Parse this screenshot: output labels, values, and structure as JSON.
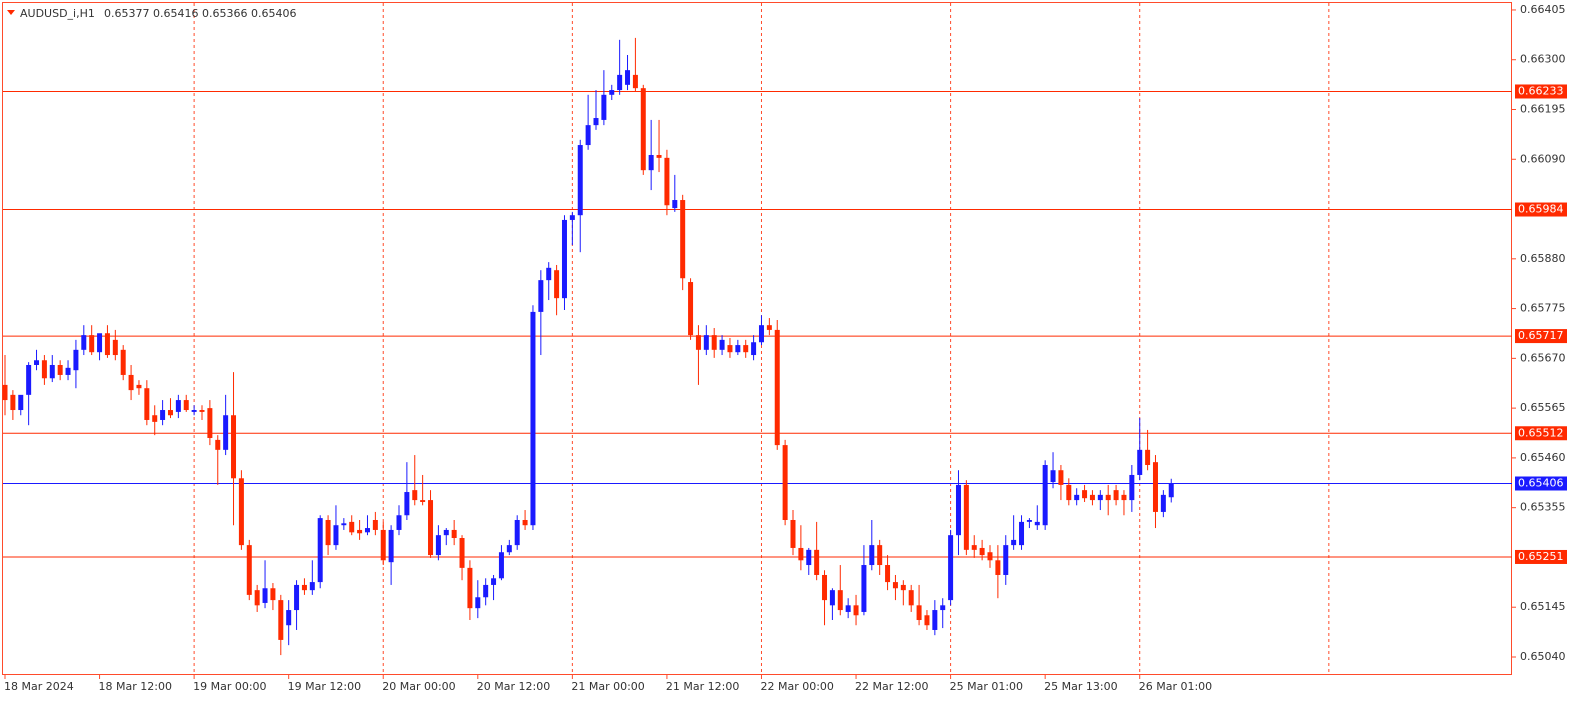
{
  "chart_data": {
    "type": "candlestick",
    "symbol": "AUDUSD_i,H1",
    "ylim": [
      0.65002,
      0.66426
    ],
    "yticks": [
      0.66405,
      {
        "value": 0.663,
        "label": "0.66300"
      },
      0.66195,
      {
        "value": 0.6609,
        "label": "0.66090"
      },
      {
        "value": 0.6588,
        "label": "0.65880"
      },
      0.65775,
      {
        "value": 0.6567,
        "label": "0.65670"
      },
      0.65565,
      {
        "value": 0.6546,
        "label": "0.65460"
      },
      0.65355,
      0.65145,
      {
        "value": 0.6504,
        "label": "0.65040"
      }
    ],
    "bull_color": "#1a1aff",
    "bear_color": "#ff2a00",
    "grid": true,
    "levels": [
      {
        "value": 0.66233,
        "color": "#ff2a00"
      },
      {
        "value": 0.65984,
        "color": "#ff2a00"
      },
      {
        "value": 0.65717,
        "color": "#ff2a00"
      },
      {
        "value": 0.65512,
        "color": "#ff2a00"
      },
      {
        "value": 0.65251,
        "color": "#ff2a00"
      },
      {
        "value": 0.65406,
        "color": "#1a1aff"
      }
    ],
    "x": [
      "18 Mar 2024",
      null,
      null,
      null,
      null,
      null,
      null,
      null,
      null,
      null,
      null,
      null,
      "18 Mar 12:00",
      null,
      null,
      null,
      null,
      null,
      null,
      null,
      null,
      null,
      null,
      null,
      "19 Mar 00:00",
      null,
      null,
      null,
      null,
      null,
      null,
      null,
      null,
      null,
      null,
      null,
      "19 Mar 12:00",
      null,
      null,
      null,
      null,
      null,
      null,
      null,
      null,
      null,
      null,
      null,
      "20 Mar 00:00",
      null,
      null,
      null,
      null,
      null,
      null,
      null,
      null,
      null,
      null,
      null,
      "20 Mar 12:00",
      null,
      null,
      null,
      null,
      null,
      null,
      null,
      null,
      null,
      null,
      null,
      "21 Mar 00:00",
      null,
      null,
      null,
      null,
      null,
      null,
      null,
      null,
      null,
      null,
      null,
      "21 Mar 12:00",
      null,
      null,
      null,
      null,
      null,
      null,
      null,
      null,
      null,
      null,
      null,
      "22 Mar 00:00",
      null,
      null,
      null,
      null,
      null,
      null,
      null,
      null,
      null,
      null,
      null,
      "22 Mar 12:00",
      null,
      null,
      null,
      null,
      null,
      null,
      null,
      null,
      null,
      null,
      null,
      "25 Mar 01:00",
      null,
      null,
      null,
      null,
      null,
      null,
      null,
      null,
      null,
      null,
      null,
      "25 Mar 13:00",
      null,
      null,
      null,
      null,
      null,
      null,
      null,
      null,
      null,
      null,
      null,
      "26 Mar 01:00",
      null,
      null,
      null,
      null
    ],
    "ohlc": [
      [
        0.65614,
        0.65677,
        0.6555,
        0.65582
      ],
      [
        0.65593,
        0.65603,
        0.6554,
        0.65561
      ],
      [
        0.65561,
        0.65582,
        0.6555,
        0.65593
      ],
      [
        0.65593,
        0.65662,
        0.65529,
        0.65656
      ],
      [
        0.65656,
        0.65688,
        0.65645,
        0.65666
      ],
      [
        0.65666,
        0.65677,
        0.65614,
        0.65628
      ],
      [
        0.65628,
        0.65677,
        0.6562,
        0.65656
      ],
      [
        0.65656,
        0.65666,
        0.65624,
        0.65635
      ],
      [
        0.65635,
        0.65666,
        0.65624,
        0.6565
      ],
      [
        0.65645,
        0.65709,
        0.65607,
        0.65688
      ],
      [
        0.65688,
        0.6574,
        0.65677,
        0.65719
      ],
      [
        0.65719,
        0.6574,
        0.65677,
        0.65683
      ],
      [
        0.65683,
        0.65719,
        0.65666,
        0.65723
      ],
      [
        0.65723,
        0.6574,
        0.65671,
        0.65677
      ],
      [
        0.65709,
        0.6573,
        0.65666,
        0.65677
      ],
      [
        0.65688,
        0.65698,
        0.65624,
        0.65635
      ],
      [
        0.65635,
        0.65656,
        0.65582,
        0.65603
      ],
      [
        0.65614,
        0.65624,
        0.65593,
        0.65607
      ],
      [
        0.65607,
        0.65624,
        0.65529,
        0.6554
      ],
      [
        0.6555,
        0.65571,
        0.65508,
        0.65536
      ],
      [
        0.6554,
        0.65582,
        0.65529,
        0.65561
      ],
      [
        0.65561,
        0.65586,
        0.65544,
        0.6555
      ],
      [
        0.65557,
        0.65593,
        0.65544,
        0.65582
      ],
      [
        0.65582,
        0.65593,
        0.65557,
        0.65561
      ],
      [
        0.65557,
        0.65571,
        0.6555,
        0.65561
      ],
      [
        0.65561,
        0.65571,
        0.6554,
        0.65557
      ],
      [
        0.65565,
        0.65582,
        0.65487,
        0.65502
      ],
      [
        0.65498,
        0.65508,
        0.65403,
        0.65477
      ],
      [
        0.65477,
        0.65593,
        0.65466,
        0.6555
      ],
      [
        0.6555,
        0.65641,
        0.65318,
        0.65417
      ],
      [
        0.65417,
        0.65434,
        0.65266,
        0.65276
      ],
      [
        0.65276,
        0.65287,
        0.6516,
        0.65171
      ],
      [
        0.65181,
        0.65192,
        0.65135,
        0.65149
      ],
      [
        0.65154,
        0.65244,
        0.65143,
        0.65185
      ],
      [
        0.65185,
        0.65196,
        0.65139,
        0.6516
      ],
      [
        0.6516,
        0.65171,
        0.65044,
        0.65076
      ],
      [
        0.65107,
        0.6516,
        0.65065,
        0.65139
      ],
      [
        0.65139,
        0.65202,
        0.65097,
        0.65192
      ],
      [
        0.65192,
        0.65206,
        0.65171,
        0.65181
      ],
      [
        0.65181,
        0.65244,
        0.65171,
        0.65198
      ],
      [
        0.65198,
        0.65339,
        0.65185,
        0.65333
      ],
      [
        0.65329,
        0.65339,
        0.65255,
        0.65276
      ],
      [
        0.65276,
        0.6536,
        0.65266,
        0.65318
      ],
      [
        0.65318,
        0.65333,
        0.65308,
        0.65322
      ],
      [
        0.65325,
        0.65339,
        0.65297,
        0.65303
      ],
      [
        0.65308,
        0.65329,
        0.65287,
        0.65301
      ],
      [
        0.65303,
        0.65339,
        0.65297,
        0.65312
      ],
      [
        0.65329,
        0.65346,
        0.65297,
        0.65308
      ],
      [
        0.65308,
        0.65325,
        0.65234,
        0.65244
      ],
      [
        0.6524,
        0.65318,
        0.65192,
        0.65308
      ],
      [
        0.65308,
        0.6536,
        0.65297,
        0.65339
      ],
      [
        0.65339,
        0.65451,
        0.65329,
        0.65388
      ],
      [
        0.65392,
        0.65466,
        0.6536,
        0.65371
      ],
      [
        0.65371,
        0.65424,
        0.6536,
        0.65367
      ],
      [
        0.65371,
        0.65392,
        0.65249,
        0.65255
      ],
      [
        0.65255,
        0.65318,
        0.65244,
        0.65297
      ],
      [
        0.65297,
        0.65312,
        0.65276,
        0.65308
      ],
      [
        0.65308,
        0.65329,
        0.65276,
        0.65291
      ],
      [
        0.65291,
        0.65297,
        0.65202,
        0.65228
      ],
      [
        0.65228,
        0.65244,
        0.65118,
        0.65143
      ],
      [
        0.65143,
        0.65202,
        0.65122,
        0.65166
      ],
      [
        0.65166,
        0.65206,
        0.65149,
        0.65192
      ],
      [
        0.65192,
        0.65213,
        0.6516,
        0.65206
      ],
      [
        0.65206,
        0.65276,
        0.65202,
        0.65261
      ],
      [
        0.65261,
        0.65287,
        0.65255,
        0.65276
      ],
      [
        0.65276,
        0.65339,
        0.65266,
        0.65329
      ],
      [
        0.65329,
        0.6535,
        0.65308,
        0.65318
      ],
      [
        0.65318,
        0.65782,
        0.65308,
        0.65768
      ],
      [
        0.65768,
        0.65856,
        0.65677,
        0.65835
      ],
      [
        0.65835,
        0.65873,
        0.65793,
        0.65861
      ],
      [
        0.65856,
        0.65867,
        0.65761,
        0.65797
      ],
      [
        0.65797,
        0.65972,
        0.65772,
        0.65962
      ],
      [
        0.65962,
        0.65979,
        0.65909,
        0.65972
      ],
      [
        0.65972,
        0.66131,
        0.65894,
        0.6612
      ],
      [
        0.6612,
        0.66226,
        0.6611,
        0.66162
      ],
      [
        0.66162,
        0.66236,
        0.66152,
        0.66177
      ],
      [
        0.66173,
        0.66278,
        0.66162,
        0.66226
      ],
      [
        0.66226,
        0.66247,
        0.66215,
        0.66236
      ],
      [
        0.66236,
        0.66342,
        0.66226,
        0.66268
      ],
      [
        0.66247,
        0.6631,
        0.66236,
        0.66278
      ],
      [
        0.66268,
        0.66346,
        0.66232,
        0.6624
      ],
      [
        0.6624,
        0.66247,
        0.66057,
        0.66067
      ],
      [
        0.66067,
        0.66173,
        0.66025,
        0.66099
      ],
      [
        0.66099,
        0.66173,
        0.66063,
        0.66093
      ],
      [
        0.66093,
        0.6611,
        0.65972,
        0.65993
      ],
      [
        0.65987,
        0.66057,
        0.65979,
        0.66004
      ],
      [
        0.66004,
        0.66015,
        0.65814,
        0.65839
      ],
      [
        0.65831,
        0.65839,
        0.65709,
        0.65719
      ],
      [
        0.65719,
        0.6574,
        0.65614,
        0.65688
      ],
      [
        0.65688,
        0.6574,
        0.65677,
        0.65719
      ],
      [
        0.65719,
        0.65734,
        0.65671,
        0.65688
      ],
      [
        0.65688,
        0.65719,
        0.65677,
        0.65709
      ],
      [
        0.65698,
        0.65713,
        0.65671,
        0.65683
      ],
      [
        0.65683,
        0.65709,
        0.65677,
        0.65698
      ],
      [
        0.65698,
        0.65709,
        0.65671,
        0.65683
      ],
      [
        0.65677,
        0.65719,
        0.65666,
        0.65704
      ],
      [
        0.65704,
        0.65761,
        0.65698,
        0.6574
      ],
      [
        0.6574,
        0.65755,
        0.65719,
        0.6573
      ],
      [
        0.6573,
        0.65751,
        0.65477,
        0.65487
      ],
      [
        0.65487,
        0.65498,
        0.65318,
        0.65329
      ],
      [
        0.65329,
        0.6535,
        0.65255,
        0.6527
      ],
      [
        0.6527,
        0.65318,
        0.65223,
        0.65244
      ],
      [
        0.65234,
        0.6527,
        0.65213,
        0.65266
      ],
      [
        0.65266,
        0.65325,
        0.65202,
        0.65213
      ],
      [
        0.65213,
        0.65223,
        0.65107,
        0.6516
      ],
      [
        0.65149,
        0.65185,
        0.65118,
        0.65181
      ],
      [
        0.65181,
        0.65234,
        0.65128,
        0.65139
      ],
      [
        0.65135,
        0.65164,
        0.65122,
        0.65149
      ],
      [
        0.65149,
        0.65171,
        0.65107,
        0.65128
      ],
      [
        0.65135,
        0.65276,
        0.65128,
        0.65234
      ],
      [
        0.65234,
        0.65329,
        0.65223,
        0.65276
      ],
      [
        0.65276,
        0.65287,
        0.65213,
        0.65234
      ],
      [
        0.65234,
        0.65255,
        0.65181,
        0.65198
      ],
      [
        0.65198,
        0.65213,
        0.6516,
        0.65185
      ],
      [
        0.65192,
        0.65202,
        0.65149,
        0.65181
      ],
      [
        0.65181,
        0.65192,
        0.65135,
        0.65149
      ],
      [
        0.65149,
        0.65192,
        0.65107,
        0.65118
      ],
      [
        0.65128,
        0.65139,
        0.65097,
        0.65107
      ],
      [
        0.65097,
        0.6516,
        0.65086,
        0.65139
      ],
      [
        0.65139,
        0.65164,
        0.65101,
        0.65149
      ],
      [
        0.6516,
        0.65308,
        0.65149,
        0.65297
      ],
      [
        0.65297,
        0.65434,
        0.65255,
        0.65403
      ],
      [
        0.65403,
        0.65413,
        0.65255,
        0.65266
      ],
      [
        0.65276,
        0.65297,
        0.65249,
        0.65266
      ],
      [
        0.6527,
        0.65287,
        0.65244,
        0.65255
      ],
      [
        0.65261,
        0.65276,
        0.65228,
        0.65244
      ],
      [
        0.65244,
        0.65276,
        0.65164,
        0.65213
      ],
      [
        0.65213,
        0.65297,
        0.65192,
        0.65276
      ],
      [
        0.65276,
        0.65339,
        0.65266,
        0.65287
      ],
      [
        0.65276,
        0.65339,
        0.65266,
        0.65325
      ],
      [
        0.65325,
        0.65333,
        0.65312,
        0.65329
      ],
      [
        0.65318,
        0.6536,
        0.65308,
        0.65325
      ],
      [
        0.65318,
        0.65455,
        0.65308,
        0.65445
      ],
      [
        0.65409,
        0.65472,
        0.65396,
        0.65434
      ],
      [
        0.65434,
        0.65445,
        0.65371,
        0.65403
      ],
      [
        0.65403,
        0.65417,
        0.6536,
        0.65371
      ],
      [
        0.65371,
        0.65396,
        0.6536,
        0.65382
      ],
      [
        0.65392,
        0.65403,
        0.65367,
        0.65375
      ],
      [
        0.65382,
        0.65392,
        0.6536,
        0.65371
      ],
      [
        0.65371,
        0.65392,
        0.6535,
        0.65382
      ],
      [
        0.65382,
        0.65403,
        0.65339,
        0.65371
      ],
      [
        0.65392,
        0.65403,
        0.6536,
        0.65371
      ],
      [
        0.65382,
        0.65392,
        0.65339,
        0.65371
      ],
      [
        0.65371,
        0.65445,
        0.65346,
        0.65424
      ],
      [
        0.65424,
        0.65544,
        0.65413,
        0.65477
      ],
      [
        0.65477,
        0.65519,
        0.65434,
        0.65445
      ],
      [
        0.65451,
        0.65466,
        0.65312,
        0.65346
      ],
      [
        0.65346,
        0.65392,
        0.65335,
        0.65382
      ],
      [
        0.65377,
        0.65416,
        0.65366,
        0.65406
      ]
    ]
  }
}
